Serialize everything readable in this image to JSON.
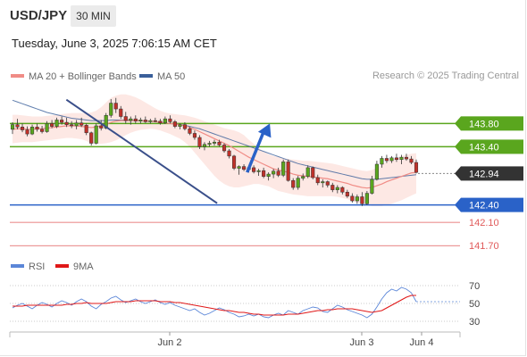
{
  "header": {
    "symbol": "USD/JPY",
    "timeframe": "30 MIN",
    "timestamp": "Tuesday, June 3, 2025 7:06:15 AM CET"
  },
  "legend": {
    "ma20": {
      "label": "MA 20 + Bollinger Bands",
      "color": "#f08c86"
    },
    "ma50": {
      "label": "MA 50",
      "color": "#3a5f9a"
    },
    "copyright": "Research © 2025 Trading Central"
  },
  "rsi_legend": {
    "rsi": {
      "label": "RSI",
      "color": "#5b86d8"
    },
    "ma9": {
      "label": "9MA",
      "color": "#e01818"
    }
  },
  "colors": {
    "resistance": "#5aa61e",
    "support": "#2a62c8",
    "target": "#e05a5a",
    "bull": "#5aa61e",
    "bear": "#c0312a",
    "band": "#fde4df",
    "trendline": "#3a4f8a",
    "arrow": "#2a62c8",
    "current": "#333333"
  },
  "chart_data": [
    {
      "type": "candlestick",
      "title": "USD/JPY 30 MIN",
      "price_range": [
        141.55,
        144.45
      ],
      "x_labels": [
        "Jun 2",
        "Jun 3",
        "Jun 4"
      ],
      "levels": [
        {
          "label": "143.80",
          "value": 143.8,
          "kind": "resistance"
        },
        {
          "label": "143.40",
          "value": 143.4,
          "kind": "resistance"
        },
        {
          "label": "142.94",
          "value": 142.94,
          "kind": "current"
        },
        {
          "label": "142.40",
          "value": 142.4,
          "kind": "support"
        },
        {
          "label": "142.10",
          "value": 142.1,
          "kind": "target"
        },
        {
          "label": "141.70",
          "value": 141.7,
          "kind": "target"
        }
      ],
      "candles": [
        [
          143.7,
          143.82,
          143.62,
          143.78
        ],
        [
          143.78,
          143.88,
          143.7,
          143.74
        ],
        [
          143.74,
          143.8,
          143.65,
          143.69
        ],
        [
          143.69,
          143.75,
          143.58,
          143.62
        ],
        [
          143.62,
          143.78,
          143.6,
          143.74
        ],
        [
          143.74,
          143.8,
          143.66,
          143.7
        ],
        [
          143.7,
          143.76,
          143.63,
          143.66
        ],
        [
          143.66,
          143.84,
          143.64,
          143.8
        ],
        [
          143.8,
          143.86,
          143.72,
          143.75
        ],
        [
          143.75,
          143.9,
          143.72,
          143.86
        ],
        [
          143.86,
          143.92,
          143.78,
          143.82
        ],
        [
          143.82,
          143.9,
          143.74,
          143.78
        ],
        [
          143.78,
          143.84,
          143.72,
          143.76
        ],
        [
          143.76,
          143.86,
          143.7,
          143.81
        ],
        [
          143.81,
          143.9,
          143.74,
          143.77
        ],
        [
          143.77,
          143.8,
          143.6,
          143.64
        ],
        [
          143.64,
          143.66,
          143.42,
          143.46
        ],
        [
          143.46,
          143.8,
          143.44,
          143.76
        ],
        [
          143.76,
          143.86,
          143.68,
          143.72
        ],
        [
          143.72,
          143.98,
          143.7,
          143.94
        ],
        [
          143.94,
          144.22,
          143.9,
          144.15
        ],
        [
          144.15,
          144.24,
          143.98,
          144.05
        ],
        [
          144.05,
          144.1,
          143.88,
          143.92
        ],
        [
          143.92,
          144.0,
          143.8,
          143.85
        ],
        [
          143.85,
          143.92,
          143.78,
          143.88
        ],
        [
          143.88,
          143.94,
          143.8,
          143.84
        ],
        [
          143.84,
          143.9,
          143.8,
          143.86
        ],
        [
          143.86,
          143.92,
          143.81,
          143.83
        ],
        [
          143.83,
          143.88,
          143.8,
          143.85
        ],
        [
          143.85,
          143.9,
          143.82,
          143.84
        ],
        [
          143.84,
          143.88,
          143.78,
          143.81
        ],
        [
          143.81,
          143.92,
          143.79,
          143.88
        ],
        [
          143.88,
          143.94,
          143.8,
          143.83
        ],
        [
          143.83,
          143.86,
          143.72,
          143.75
        ],
        [
          143.75,
          143.8,
          143.7,
          143.78
        ],
        [
          143.78,
          143.82,
          143.68,
          143.71
        ],
        [
          143.71,
          143.74,
          143.6,
          143.63
        ],
        [
          143.63,
          143.68,
          143.52,
          143.56
        ],
        [
          143.56,
          143.6,
          143.36,
          143.4
        ],
        [
          143.4,
          143.48,
          143.34,
          143.44
        ],
        [
          143.44,
          143.5,
          143.4,
          143.46
        ],
        [
          143.46,
          143.52,
          143.42,
          143.48
        ],
        [
          143.48,
          143.52,
          143.4,
          143.43
        ],
        [
          143.43,
          143.46,
          143.3,
          143.33
        ],
        [
          143.33,
          143.36,
          143.2,
          143.24
        ],
        [
          143.24,
          143.26,
          143.0,
          143.03
        ],
        [
          143.03,
          143.08,
          142.92,
          143.06
        ],
        [
          143.06,
          143.1,
          142.98,
          143.01
        ],
        [
          143.01,
          143.08,
          142.96,
          143.04
        ],
        [
          143.04,
          143.08,
          142.94,
          142.97
        ],
        [
          142.97,
          143.02,
          142.9,
          142.99
        ],
        [
          142.99,
          143.04,
          142.86,
          142.89
        ],
        [
          142.89,
          142.96,
          142.82,
          142.93
        ],
        [
          142.93,
          143.02,
          142.86,
          142.98
        ],
        [
          142.98,
          143.04,
          142.88,
          142.91
        ],
        [
          142.91,
          143.18,
          142.88,
          143.14
        ],
        [
          143.14,
          143.18,
          142.8,
          142.82
        ],
        [
          142.82,
          142.86,
          142.66,
          142.7
        ],
        [
          142.7,
          142.9,
          142.66,
          142.86
        ],
        [
          142.86,
          142.94,
          142.82,
          142.89
        ],
        [
          142.89,
          143.08,
          142.86,
          143.04
        ],
        [
          143.04,
          143.06,
          142.84,
          142.87
        ],
        [
          142.87,
          142.92,
          142.74,
          142.78
        ],
        [
          142.78,
          142.84,
          142.7,
          142.8
        ],
        [
          142.8,
          142.82,
          142.7,
          142.74
        ],
        [
          142.74,
          142.78,
          142.62,
          142.66
        ],
        [
          142.66,
          142.74,
          142.6,
          142.7
        ],
        [
          142.7,
          142.72,
          142.58,
          142.62
        ],
        [
          142.62,
          142.66,
          142.52,
          142.55
        ],
        [
          142.55,
          142.6,
          142.44,
          142.47
        ],
        [
          142.47,
          142.58,
          142.42,
          142.54
        ],
        [
          142.54,
          142.62,
          142.38,
          142.42
        ],
        [
          142.42,
          142.64,
          142.4,
          142.6
        ],
        [
          142.6,
          142.9,
          142.58,
          142.84
        ],
        [
          142.84,
          143.16,
          142.82,
          143.1
        ],
        [
          143.1,
          143.24,
          143.04,
          143.2
        ],
        [
          143.2,
          143.26,
          143.12,
          143.16
        ],
        [
          143.16,
          143.24,
          143.12,
          143.21
        ],
        [
          143.21,
          143.28,
          143.14,
          143.18
        ],
        [
          143.18,
          143.26,
          143.1,
          143.22
        ],
        [
          143.22,
          143.28,
          143.16,
          143.19
        ],
        [
          143.19,
          143.24,
          143.1,
          143.13
        ],
        [
          143.13,
          143.18,
          142.94,
          142.96
        ]
      ],
      "ma20": [
        143.7,
        143.71,
        143.71,
        143.7,
        143.7,
        143.71,
        143.71,
        143.72,
        143.73,
        143.74,
        143.75,
        143.76,
        143.76,
        143.76,
        143.75,
        143.74,
        143.73,
        143.74,
        143.76,
        143.79,
        143.82,
        143.84,
        143.85,
        143.85,
        143.85,
        143.85,
        143.85,
        143.84,
        143.84,
        143.83,
        143.82,
        143.81,
        143.8,
        143.79,
        143.78,
        143.76,
        143.73,
        143.7,
        143.66,
        143.62,
        143.58,
        143.54,
        143.5,
        143.46,
        143.42,
        143.37,
        143.32,
        143.27,
        143.22,
        143.18,
        143.14,
        143.1,
        143.06,
        143.02,
        143.0,
        142.98,
        142.96,
        142.93,
        142.91,
        142.9,
        142.89,
        142.88,
        142.87,
        142.86,
        142.85,
        142.83,
        142.81,
        142.79,
        142.77,
        142.74,
        142.72,
        142.7,
        142.69,
        142.7,
        142.73,
        142.76,
        142.8,
        142.83,
        142.86,
        142.89,
        142.92,
        142.95,
        142.96
      ],
      "ma50": [
        144.2,
        144.17,
        144.14,
        144.11,
        144.08,
        144.05,
        144.02,
        143.99,
        143.97,
        143.95,
        143.93,
        143.91,
        143.89,
        143.88,
        143.87,
        143.86,
        143.85,
        143.85,
        143.85,
        143.85,
        143.86,
        143.86,
        143.86,
        143.86,
        143.86,
        143.85,
        143.85,
        143.84,
        143.84,
        143.83,
        143.82,
        143.81,
        143.8,
        143.79,
        143.78,
        143.77,
        143.75,
        143.73,
        143.71,
        143.68,
        143.65,
        143.62,
        143.59,
        143.56,
        143.53,
        143.5,
        143.47,
        143.44,
        143.41,
        143.38,
        143.35,
        143.32,
        143.29,
        143.26,
        143.23,
        143.2,
        143.17,
        143.14,
        143.11,
        143.09,
        143.07,
        143.05,
        143.03,
        143.01,
        142.99,
        142.97,
        142.95,
        142.93,
        142.91,
        142.89,
        142.87,
        142.85,
        142.84,
        142.84,
        142.84,
        142.85,
        142.86,
        142.87,
        142.88,
        142.89,
        142.9,
        142.91,
        142.92
      ],
      "band_upper": [
        143.95,
        143.95,
        143.94,
        143.93,
        143.92,
        143.92,
        143.92,
        143.93,
        143.94,
        143.95,
        143.96,
        143.97,
        143.98,
        143.98,
        143.98,
        143.98,
        143.99,
        144.02,
        144.08,
        144.16,
        144.24,
        144.28,
        144.3,
        144.3,
        144.28,
        144.25,
        144.21,
        144.16,
        144.11,
        144.06,
        144.02,
        143.99,
        143.97,
        143.96,
        143.95,
        143.94,
        143.92,
        143.9,
        143.87,
        143.84,
        143.81,
        143.78,
        143.75,
        143.72,
        143.7,
        143.68,
        143.65,
        143.6,
        143.52,
        143.45,
        143.38,
        143.32,
        143.27,
        143.24,
        143.22,
        143.2,
        143.19,
        143.18,
        143.17,
        143.16,
        143.16,
        143.15,
        143.14,
        143.13,
        143.12,
        143.11,
        143.09,
        143.07,
        143.05,
        143.03,
        143.01,
        142.99,
        142.98,
        143.0,
        143.04,
        143.09,
        143.14,
        143.18,
        143.21,
        143.24,
        143.26,
        143.28,
        143.29
      ],
      "band_lower": [
        143.46,
        143.47,
        143.48,
        143.48,
        143.48,
        143.49,
        143.5,
        143.51,
        143.52,
        143.53,
        143.54,
        143.55,
        143.55,
        143.54,
        143.53,
        143.5,
        143.46,
        143.45,
        143.45,
        143.46,
        143.48,
        143.51,
        143.55,
        143.6,
        143.64,
        143.67,
        143.69,
        143.7,
        143.71,
        143.7,
        143.68,
        143.65,
        143.62,
        143.58,
        143.54,
        143.48,
        143.4,
        143.3,
        143.2,
        143.1,
        143.0,
        142.9,
        142.82,
        142.76,
        142.72,
        142.7,
        142.7,
        142.72,
        142.74,
        142.76,
        142.76,
        142.74,
        142.72,
        142.68,
        142.64,
        142.62,
        142.6,
        142.58,
        142.57,
        142.56,
        142.55,
        142.55,
        142.55,
        142.55,
        142.55,
        142.55,
        142.54,
        142.52,
        142.5,
        142.47,
        142.44,
        142.42,
        142.4,
        142.38,
        142.38,
        142.38,
        142.4,
        142.42,
        142.45,
        142.48,
        142.52,
        142.56,
        142.6
      ],
      "trendline": {
        "start": [
          0.126,
          144.21
        ],
        "end": [
          0.412,
          142.43
        ]
      },
      "projection": {
        "start": [
          0.469,
          142.96
        ],
        "end": [
          0.512,
          143.8
        ]
      }
    },
    {
      "type": "line",
      "title": "RSI",
      "ylim": [
        20,
        80
      ],
      "ticks": [
        "70",
        "50",
        "30"
      ],
      "tick_values": [
        70,
        50,
        30
      ],
      "series": [
        {
          "name": "RSI",
          "values": [
            45,
            48,
            50,
            47,
            44,
            48,
            51,
            49,
            46,
            50,
            53,
            51,
            48,
            52,
            55,
            52,
            47,
            44,
            49,
            52,
            56,
            58,
            54,
            51,
            53,
            55,
            52,
            50,
            52,
            54,
            51,
            49,
            51,
            48,
            46,
            44,
            42,
            44,
            40,
            37,
            39,
            42,
            45,
            43,
            40,
            38,
            35,
            36,
            38,
            36,
            38,
            35,
            34,
            37,
            39,
            37,
            42,
            40,
            38,
            42,
            44,
            46,
            45,
            41,
            40,
            44,
            48,
            46,
            43,
            41,
            39,
            37,
            34,
            38,
            46,
            55,
            62,
            66,
            64,
            68,
            66,
            62,
            52
          ]
        },
        {
          "name": "9MA",
          "values": [
            47,
            47,
            47,
            48,
            48,
            48,
            48,
            48,
            48,
            48,
            48,
            49,
            49,
            50,
            50,
            51,
            50,
            50,
            50,
            50,
            51,
            52,
            52,
            52,
            52,
            53,
            53,
            53,
            53,
            53,
            52,
            52,
            52,
            51,
            51,
            50,
            49,
            48,
            47,
            46,
            45,
            44,
            43,
            42,
            42,
            41,
            40,
            40,
            39,
            38,
            38,
            37,
            37,
            37,
            37,
            37,
            38,
            38,
            38,
            39,
            40,
            41,
            42,
            42,
            43,
            43,
            44,
            44,
            44,
            44,
            43,
            42,
            41,
            40,
            41,
            42,
            45,
            48,
            51,
            54,
            57,
            59,
            59
          ]
        }
      ]
    }
  ]
}
